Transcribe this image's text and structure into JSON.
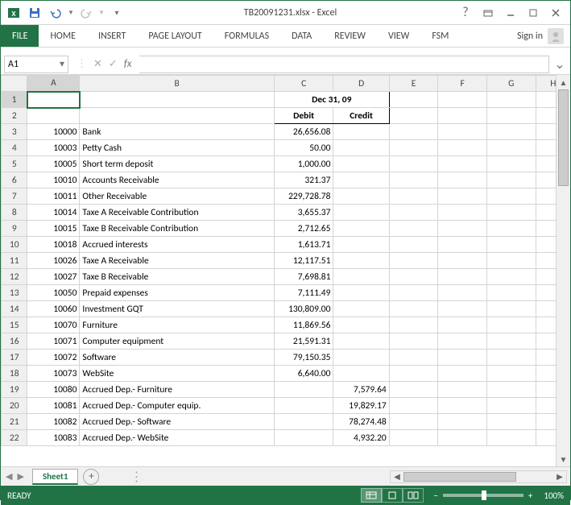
{
  "window": {
    "title": "TB20091231.xlsx - Excel",
    "signin": "Sign in"
  },
  "ribbon": {
    "tabs": [
      "FILE",
      "HOME",
      "INSERT",
      "PAGE LAYOUT",
      "FORMULAS",
      "DATA",
      "REVIEW",
      "VIEW",
      "FSM"
    ],
    "active": "FILE"
  },
  "nameBox": "A1",
  "sheet": {
    "dateHeader": "Dec 31, 09",
    "debitLabel": "Debit",
    "creditLabel": "Credit",
    "columns": [
      "A",
      "B",
      "C",
      "D",
      "E",
      "F",
      "G",
      "H"
    ],
    "rows": [
      {
        "n": 3,
        "code": "10000",
        "desc": "Bank",
        "debit": "26,656.08",
        "credit": ""
      },
      {
        "n": 4,
        "code": "10003",
        "desc": "Petty Cash",
        "debit": "50.00",
        "credit": ""
      },
      {
        "n": 5,
        "code": "10005",
        "desc": "Short term deposit",
        "debit": "1,000.00",
        "credit": ""
      },
      {
        "n": 6,
        "code": "10010",
        "desc": "Accounts Receivable",
        "debit": "321.37",
        "credit": ""
      },
      {
        "n": 7,
        "code": "10011",
        "desc": "Other Receivable",
        "debit": "229,728.78",
        "credit": ""
      },
      {
        "n": 8,
        "code": "10014",
        "desc": "Taxe A Receivable Contribution",
        "debit": "3,655.37",
        "credit": ""
      },
      {
        "n": 9,
        "code": "10015",
        "desc": "Taxe B Receivable Contribution",
        "debit": "2,712.65",
        "credit": ""
      },
      {
        "n": 10,
        "code": "10018",
        "desc": "Accrued interests",
        "debit": "1,613.71",
        "credit": ""
      },
      {
        "n": 11,
        "code": "10026",
        "desc": "Taxe A Receivable",
        "debit": "12,117.51",
        "credit": ""
      },
      {
        "n": 12,
        "code": "10027",
        "desc": "Taxe B Receivable",
        "debit": "7,698.81",
        "credit": ""
      },
      {
        "n": 13,
        "code": "10050",
        "desc": "Prepaid expenses",
        "debit": "7,111.49",
        "credit": ""
      },
      {
        "n": 14,
        "code": "10060",
        "desc": "Investment GQT",
        "debit": "130,809.00",
        "credit": ""
      },
      {
        "n": 15,
        "code": "10070",
        "desc": "Furniture",
        "debit": "11,869.56",
        "credit": ""
      },
      {
        "n": 16,
        "code": "10071",
        "desc": "Computer equipment",
        "debit": "21,591.31",
        "credit": ""
      },
      {
        "n": 17,
        "code": "10072",
        "desc": "Software",
        "debit": "79,150.35",
        "credit": ""
      },
      {
        "n": 18,
        "code": "10073",
        "desc": "WebSite",
        "debit": "6,640.00",
        "credit": ""
      },
      {
        "n": 19,
        "code": "10080",
        "desc": "Accrued Dep.- Furniture",
        "debit": "",
        "credit": "7,579.64"
      },
      {
        "n": 20,
        "code": "10081",
        "desc": "Accrued Dep.- Computer equip.",
        "debit": "",
        "credit": "19,829.17"
      },
      {
        "n": 21,
        "code": "10082",
        "desc": "Accrued Dep.- Software",
        "debit": "",
        "credit": "78,274.48"
      },
      {
        "n": 22,
        "code": "10083",
        "desc": "Accrued Dep.- WebSite",
        "debit": "",
        "credit": "4,932.20"
      }
    ]
  },
  "tabs": {
    "sheet1": "Sheet1"
  },
  "status": {
    "ready": "READY",
    "zoom": "100%"
  },
  "colors": {
    "excelGreen": "#217346",
    "gridBorder": "#d4d4d4",
    "headerBg": "#f0f0f0"
  }
}
